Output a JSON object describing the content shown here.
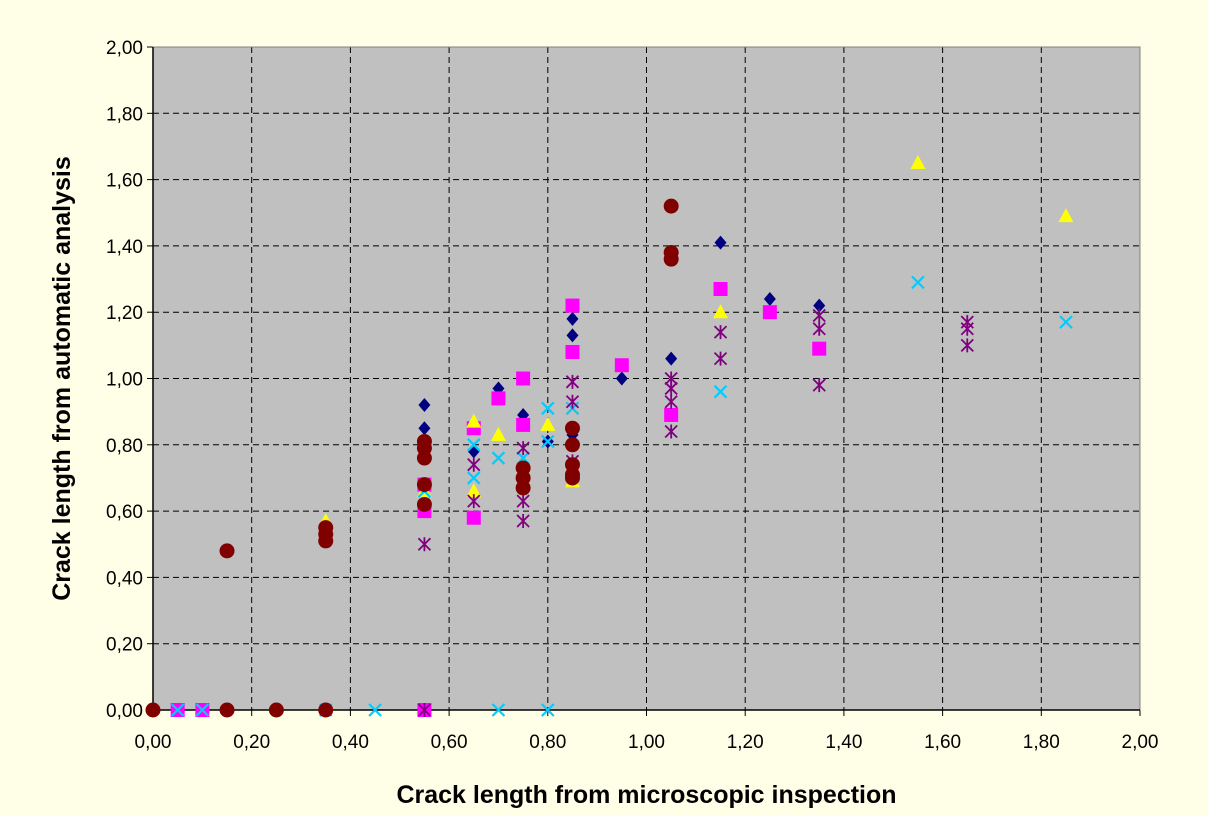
{
  "colors": {
    "page_background": "#FFFFE8",
    "plot_background": "#C0C0C0",
    "grid": "#000000",
    "axis": "#000000"
  },
  "chart_data": {
    "type": "scatter",
    "title": "",
    "xlabel": "Crack length from microscopic inspection",
    "ylabel": "Crack length from automatic analysis",
    "xlim": [
      0,
      2
    ],
    "ylim": [
      0,
      2
    ],
    "xticks": [
      "0,00",
      "0,20",
      "0,40",
      "0,60",
      "0,80",
      "1,00",
      "1,20",
      "1,40",
      "1,60",
      "1,80",
      "2,00"
    ],
    "yticks": [
      "0,00",
      "0,20",
      "0,40",
      "0,60",
      "0,80",
      "1,00",
      "1,20",
      "1,40",
      "1,60",
      "1,80",
      "2,00"
    ],
    "grid": true,
    "legend": "none",
    "series": [
      {
        "marker": "diamond",
        "color": "#000080",
        "points": [
          [
            0.55,
            0.92
          ],
          [
            0.55,
            0.85
          ],
          [
            0.65,
            0.78
          ],
          [
            0.7,
            0.97
          ],
          [
            0.75,
            0.89
          ],
          [
            0.75,
            1.0
          ],
          [
            0.85,
            1.18
          ],
          [
            0.85,
            1.13
          ],
          [
            0.85,
            0.83
          ],
          [
            0.95,
            1.0
          ],
          [
            1.05,
            1.06
          ],
          [
            1.15,
            1.41
          ],
          [
            1.25,
            1.24
          ],
          [
            1.35,
            1.22
          ],
          [
            0.8,
            0.81
          ]
        ]
      },
      {
        "marker": "square",
        "color": "#FF00FF",
        "points": [
          [
            0.05,
            0.0
          ],
          [
            0.1,
            0.0
          ],
          [
            0.55,
            0.0
          ],
          [
            0.55,
            0.6
          ],
          [
            0.55,
            0.68
          ],
          [
            0.65,
            0.58
          ],
          [
            0.65,
            0.85
          ],
          [
            0.7,
            0.94
          ],
          [
            0.75,
            1.0
          ],
          [
            0.75,
            0.86
          ],
          [
            0.85,
            1.22
          ],
          [
            0.85,
            1.08
          ],
          [
            0.95,
            1.04
          ],
          [
            1.05,
            0.89
          ],
          [
            1.15,
            1.27
          ],
          [
            1.25,
            1.2
          ],
          [
            1.35,
            1.09
          ]
        ]
      },
      {
        "marker": "triangle",
        "color": "#FFFF00",
        "points": [
          [
            0.35,
            0.57
          ],
          [
            0.55,
            0.66
          ],
          [
            0.65,
            0.87
          ],
          [
            0.65,
            0.66
          ],
          [
            0.7,
            0.83
          ],
          [
            0.8,
            0.86
          ],
          [
            0.85,
            0.69
          ],
          [
            1.15,
            1.2
          ],
          [
            1.55,
            1.65
          ],
          [
            1.85,
            1.49
          ]
        ]
      },
      {
        "marker": "x",
        "color": "#00CCFF",
        "points": [
          [
            0.05,
            0.0
          ],
          [
            0.1,
            0.0
          ],
          [
            0.35,
            0.0
          ],
          [
            0.45,
            0.0
          ],
          [
            0.7,
            0.0
          ],
          [
            0.8,
            0.0
          ],
          [
            0.55,
            0.8
          ],
          [
            0.55,
            0.66
          ],
          [
            0.65,
            0.8
          ],
          [
            0.65,
            0.7
          ],
          [
            0.7,
            0.76
          ],
          [
            0.75,
            0.76
          ],
          [
            0.8,
            0.91
          ],
          [
            0.8,
            0.81
          ],
          [
            0.85,
            0.91
          ],
          [
            1.15,
            0.96
          ],
          [
            1.55,
            1.29
          ],
          [
            1.85,
            1.17
          ]
        ]
      },
      {
        "marker": "asterisk",
        "color": "#800080",
        "points": [
          [
            0.55,
            0.5
          ],
          [
            0.55,
            0.0
          ],
          [
            0.65,
            0.74
          ],
          [
            0.65,
            0.63
          ],
          [
            0.75,
            0.79
          ],
          [
            0.75,
            0.72
          ],
          [
            0.75,
            0.63
          ],
          [
            0.75,
            0.57
          ],
          [
            0.85,
            0.99
          ],
          [
            0.85,
            0.93
          ],
          [
            0.85,
            0.75
          ],
          [
            1.05,
            1.0
          ],
          [
            1.05,
            0.97
          ],
          [
            1.05,
            0.93
          ],
          [
            1.05,
            0.84
          ],
          [
            1.15,
            1.14
          ],
          [
            1.15,
            1.06
          ],
          [
            1.35,
            1.19
          ],
          [
            1.35,
            1.15
          ],
          [
            1.35,
            0.98
          ],
          [
            1.65,
            1.17
          ],
          [
            1.65,
            1.15
          ],
          [
            1.65,
            1.1
          ]
        ]
      },
      {
        "marker": "circle",
        "color": "#800000",
        "points": [
          [
            0.0,
            0.0
          ],
          [
            0.15,
            0.0
          ],
          [
            0.25,
            0.0
          ],
          [
            0.35,
            0.0
          ],
          [
            0.15,
            0.48
          ],
          [
            0.35,
            0.55
          ],
          [
            0.35,
            0.53
          ],
          [
            0.35,
            0.51
          ],
          [
            0.55,
            0.81
          ],
          [
            0.55,
            0.79
          ],
          [
            0.55,
            0.76
          ],
          [
            0.55,
            0.68
          ],
          [
            0.55,
            0.62
          ],
          [
            0.75,
            0.73
          ],
          [
            0.75,
            0.7
          ],
          [
            0.75,
            0.67
          ],
          [
            0.85,
            0.85
          ],
          [
            0.85,
            0.8
          ],
          [
            0.85,
            0.74
          ],
          [
            0.85,
            0.71
          ],
          [
            0.85,
            0.7
          ],
          [
            1.05,
            1.52
          ],
          [
            1.05,
            1.38
          ],
          [
            1.05,
            1.36
          ]
        ]
      }
    ]
  }
}
